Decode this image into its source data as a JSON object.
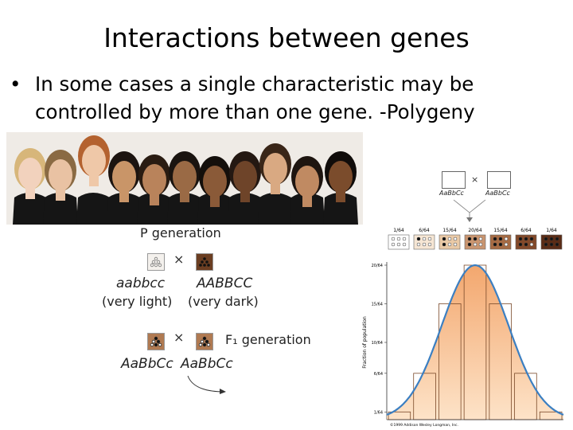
{
  "slide": {
    "title": "Interactions between genes",
    "bullet_marker": "•",
    "bullet_text": "In some cases a single characteristic may be controlled by more than one gene. -Polygeny"
  },
  "cross_diagram": {
    "p_generation_label": "P generation",
    "parent1_genotype": "aabbcc",
    "parent1_phenotype": "(very light)",
    "parent2_genotype": "AABBCC",
    "parent2_phenotype": "(very dark)",
    "f1_generation_label": "F₁ generation",
    "f1_genotype_1": "AaBbCc",
    "f1_genotype_2": "AaBbCc",
    "cross_symbol": "×"
  },
  "distribution_figure": {
    "cross_left": "AaBbCc",
    "cross_right": "AaBbCc",
    "cross_symbol": "×",
    "y_axis_label": "Fraction of population",
    "copyright": "©1999 Addison Wesley Longman, Inc.",
    "colors": {
      "curve": "#3b7fc2",
      "fill": "#f3a76e",
      "fill_light": "#fde3c8",
      "bar_stroke": "#7a4a2a"
    }
  },
  "chart_data": {
    "type": "bar",
    "categories": [
      "0",
      "1",
      "2",
      "3",
      "4",
      "5",
      "6"
    ],
    "values": [
      1,
      6,
      15,
      20,
      15,
      6,
      1
    ],
    "value_labels": [
      "1/64",
      "6/64",
      "15/64",
      "20/64",
      "15/64",
      "6/64",
      "1/64"
    ],
    "y_tick_labels": [
      "20/64",
      "15/64",
      "10/64",
      "6/64",
      "1/64"
    ],
    "ylabel": "Fraction of population",
    "ylim": [
      0,
      20
    ]
  }
}
